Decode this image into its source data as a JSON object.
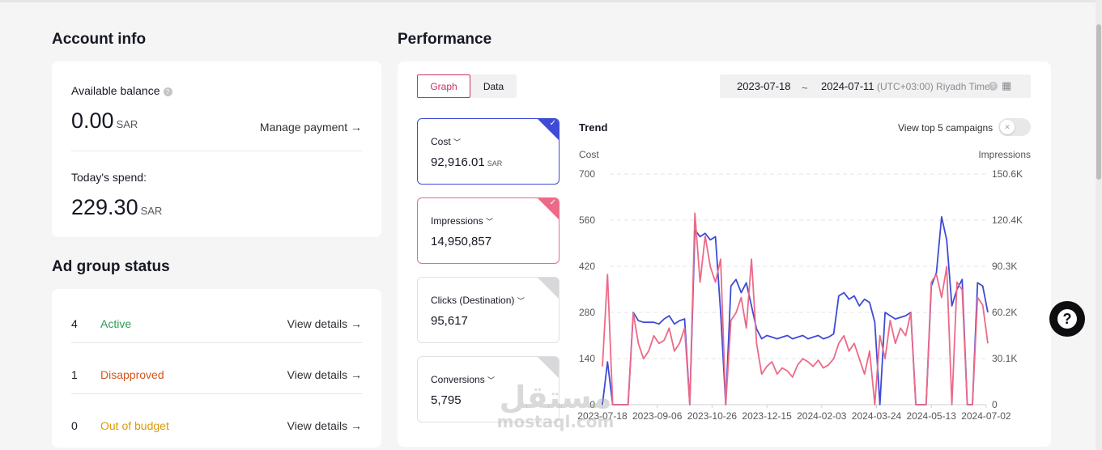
{
  "account_info": {
    "title": "Account info",
    "available_balance_label": "Available balance",
    "balance_value": "0.00",
    "currency": "SAR",
    "manage_payment": "Manage payment",
    "todays_spend_label": "Today's spend:",
    "todays_spend_value": "229.30"
  },
  "ad_group_status": {
    "title": "Ad group status",
    "rows": [
      {
        "count": "4",
        "label": "Active",
        "color": "#2c9c55",
        "link": "View details"
      },
      {
        "count": "1",
        "label": "Disapproved",
        "color": "#d2561e",
        "link": "View details"
      },
      {
        "count": "0",
        "label": "Out of budget",
        "color": "#d99a0b",
        "link": "View details"
      }
    ]
  },
  "performance": {
    "title": "Performance",
    "view_tabs": [
      "Graph",
      "Data"
    ],
    "date_from": "2023-07-18",
    "date_sep": "~",
    "date_to": "2024-07-11",
    "timezone": "(UTC+03:00) Riyadh Time",
    "metrics": [
      {
        "name": "Cost",
        "value": "92,916.01",
        "unit": "SAR",
        "color": "#3d4bd6",
        "selected": true
      },
      {
        "name": "Impressions",
        "value": "14,950,857",
        "unit": "",
        "color": "#ec6a88",
        "selected": true
      },
      {
        "name": "Clicks (Destination)",
        "value": "95,617",
        "unit": "",
        "color": "#d8d8db",
        "selected": false
      },
      {
        "name": "Conversions",
        "value": "5,795",
        "unit": "",
        "color": "#d8d8db",
        "selected": false
      }
    ],
    "trend_title": "Trend",
    "top5_label": "View top 5 campaigns"
  },
  "chart_data": {
    "type": "line",
    "title": "Trend",
    "ylabel_left": "Cost",
    "ylabel_right": "Impressions",
    "y_left_ticks": [
      "700",
      "560",
      "420",
      "280",
      "140",
      "0"
    ],
    "y_right_ticks": [
      "150.6K",
      "120.4K",
      "90.3K",
      "60.2K",
      "30.1K",
      "0"
    ],
    "ylim_left": [
      0,
      700
    ],
    "ylim_right": [
      0,
      150600
    ],
    "x_ticks": [
      "2023-07-18",
      "2023-09-06",
      "2023-10-26",
      "2023-12-15",
      "2024-02-03",
      "2024-03-24",
      "2024-05-13",
      "2024-07-02"
    ],
    "grid": true,
    "series": [
      {
        "name": "Cost",
        "axis": "left",
        "color": "#3d4bd6",
        "values": [
          0,
          130,
          0,
          0,
          0,
          0,
          280,
          255,
          250,
          250,
          250,
          245,
          260,
          270,
          245,
          255,
          260,
          0,
          530,
          510,
          520,
          500,
          510,
          280,
          0,
          360,
          380,
          340,
          370,
          300,
          230,
          200,
          210,
          205,
          200,
          205,
          210,
          200,
          205,
          210,
          200,
          205,
          210,
          200,
          205,
          215,
          330,
          340,
          320,
          330,
          300,
          320,
          310,
          250,
          0,
          280,
          270,
          260,
          265,
          270,
          280,
          0,
          0,
          0,
          360,
          400,
          570,
          500,
          300,
          350,
          380,
          0,
          0,
          370,
          360,
          280
        ]
      },
      {
        "name": "Impressions",
        "axis": "right",
        "color": "#ec6a88",
        "values": [
          25000,
          85000,
          0,
          0,
          0,
          0,
          60000,
          40000,
          30000,
          35000,
          45000,
          40000,
          42000,
          50000,
          35000,
          40000,
          50000,
          0,
          125000,
          80000,
          110000,
          90000,
          80000,
          95000,
          0,
          55000,
          60000,
          70000,
          50000,
          95000,
          40000,
          20000,
          25000,
          28000,
          20000,
          24000,
          22000,
          18000,
          26000,
          30000,
          28000,
          25000,
          29000,
          24000,
          26000,
          30000,
          40000,
          45000,
          35000,
          40000,
          30000,
          20000,
          35000,
          0,
          45000,
          30000,
          55000,
          40000,
          50000,
          45000,
          60000,
          0,
          0,
          0,
          80000,
          85000,
          70000,
          90000,
          0,
          80000,
          75000,
          0,
          0,
          70000,
          65000,
          40000
        ]
      }
    ]
  }
}
